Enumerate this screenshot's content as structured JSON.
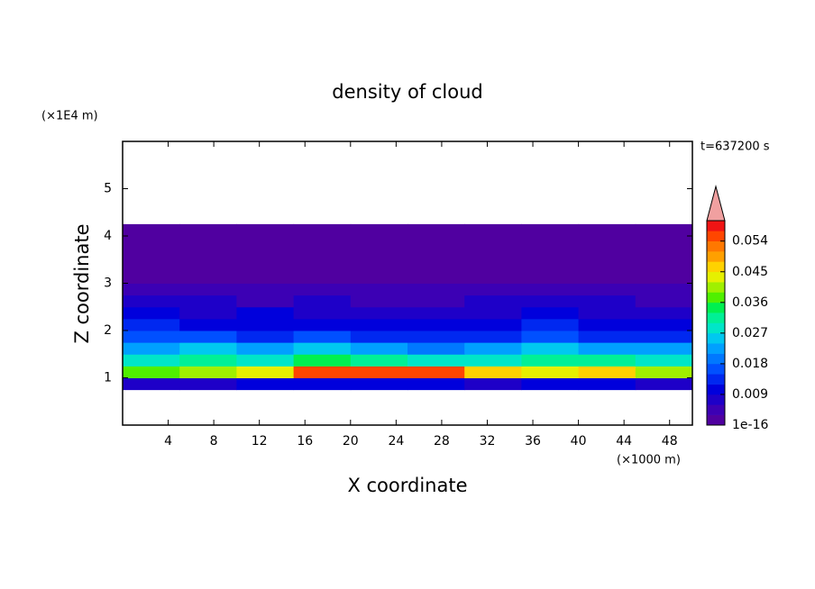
{
  "chart_data": {
    "type": "contour",
    "title": "density of cloud",
    "xlabel": "X coordinate",
    "ylabel": "Z coordinate",
    "xunit": "(×1000 m)",
    "yunit": "(×1E4 m)",
    "annotation": "t=637200 s",
    "xlim": [
      0,
      50
    ],
    "ylim": [
      0,
      6
    ],
    "xticks": [
      4,
      8,
      12,
      16,
      20,
      24,
      28,
      32,
      36,
      40,
      44,
      48
    ],
    "yticks": [
      1,
      2,
      3,
      4,
      5
    ],
    "x": [
      2.5,
      7.5,
      12.5,
      17.5,
      22.5,
      27.5,
      32.5,
      37.5,
      42.5,
      47.5
    ],
    "y": [
      0.875,
      1.125,
      1.375,
      1.625,
      1.875,
      2.125,
      2.375,
      2.625,
      2.875,
      3.125,
      3.375,
      3.625,
      3.875,
      4.125
    ],
    "z": [
      [
        0.008,
        0.009,
        0.01,
        0.012,
        0.012,
        0.011,
        0.009,
        0.01,
        0.01,
        0.009
      ],
      [
        0.038,
        0.042,
        0.045,
        0.055,
        0.056,
        0.054,
        0.046,
        0.044,
        0.048,
        0.04
      ],
      [
        0.03,
        0.032,
        0.028,
        0.034,
        0.033,
        0.03,
        0.028,
        0.033,
        0.031,
        0.028
      ],
      [
        0.024,
        0.026,
        0.023,
        0.025,
        0.022,
        0.021,
        0.024,
        0.025,
        0.023,
        0.022
      ],
      [
        0.016,
        0.017,
        0.015,
        0.016,
        0.014,
        0.013,
        0.015,
        0.016,
        0.015,
        0.014
      ],
      [
        0.013,
        0.012,
        0.011,
        0.012,
        0.011,
        0.01,
        0.012,
        0.013,
        0.012,
        0.011
      ],
      [
        0.01,
        0.009,
        0.01,
        0.009,
        0.008,
        0.008,
        0.009,
        0.01,
        0.009,
        0.009
      ],
      [
        0.007,
        0.007,
        0.006,
        0.007,
        0.006,
        0.006,
        0.007,
        0.007,
        0.007,
        0.006
      ],
      [
        0.005,
        0.005,
        0.004,
        0.004,
        0.004,
        0.004,
        0.005,
        0.005,
        0.004,
        0.004
      ],
      [
        0.003,
        0.003,
        0.002,
        0.002,
        0.002,
        0.002,
        0.003,
        0.003,
        0.002,
        0.002
      ],
      [
        0.001,
        0.001,
        0.001,
        0.002,
        0.002,
        0.001,
        0.002,
        0.002,
        0.001,
        0.001
      ],
      [
        0.001,
        0.001,
        0.001,
        0.001,
        0.001,
        0.001,
        0.001,
        0.001,
        0.001,
        0.001
      ],
      [
        0.001,
        0.001,
        0.001,
        0.001,
        0.001,
        0.001,
        0.001,
        0.001,
        0.001,
        0.001
      ],
      [
        0.0005,
        0.0005,
        0.0005,
        0.0005,
        0.0005,
        0.0005,
        0.0005,
        0.0005,
        0.0005,
        0.0005
      ]
    ],
    "clim": [
      1e-16,
      0.06
    ],
    "cticks": [
      1e-16,
      0.009,
      0.018,
      0.027,
      0.036,
      0.045,
      0.054
    ],
    "colors": [
      "#5000a0",
      "#3c00b4",
      "#1e00c8",
      "#0000dc",
      "#0028f0",
      "#0050ff",
      "#0078ff",
      "#00a0ff",
      "#00c8f0",
      "#00e6c8",
      "#00f096",
      "#00f050",
      "#50f000",
      "#a0f000",
      "#e6f000",
      "#ffd200",
      "#ffa000",
      "#ff7800",
      "#ff4600",
      "#f01414"
    ],
    "extend_color": "#f0a0a0"
  }
}
